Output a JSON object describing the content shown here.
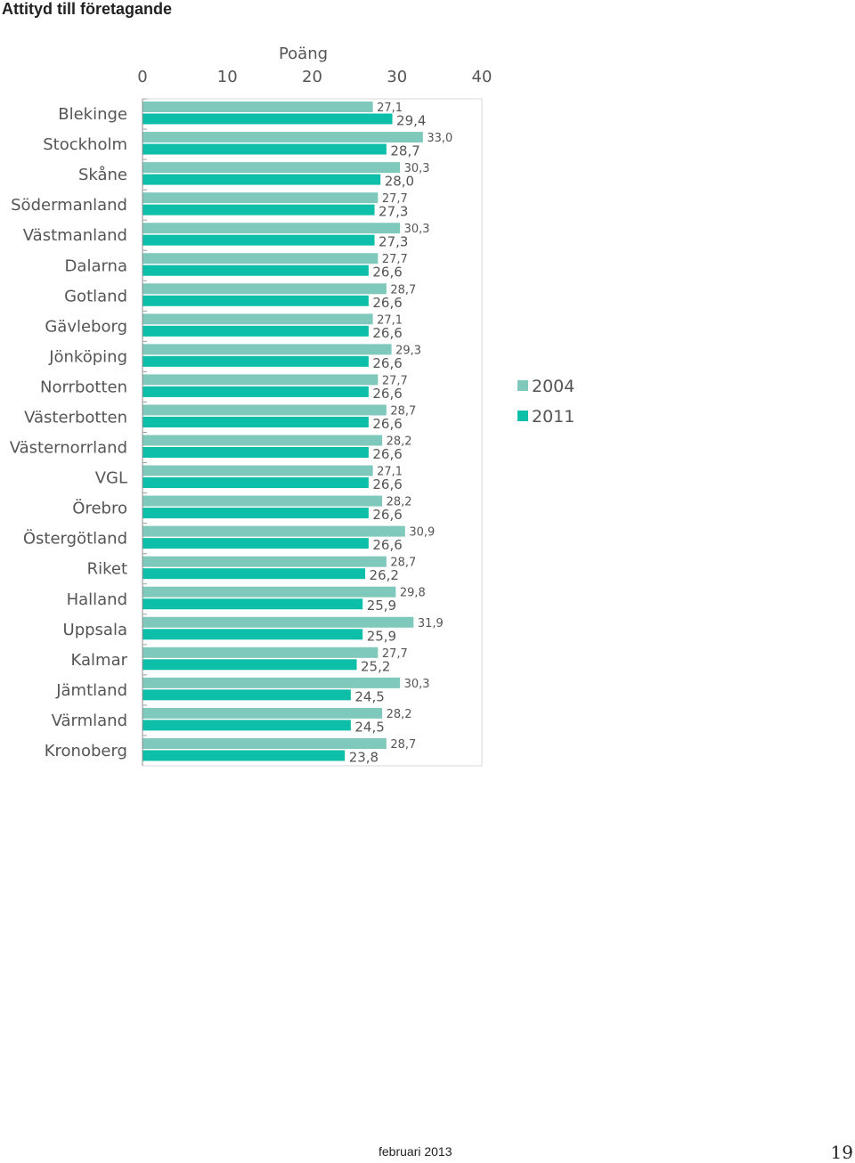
{
  "page": {
    "title": "Attityd till företagande",
    "footer": "februari 2013",
    "page_number": "19"
  },
  "chart_data": {
    "type": "bar",
    "orientation": "horizontal",
    "title": "",
    "xlabel": "Poäng",
    "ylabel": "",
    "xlim": [
      0,
      40
    ],
    "xticks": [
      "0",
      "10",
      "20",
      "30",
      "40"
    ],
    "grid": false,
    "legend_position": "right",
    "categories": [
      "Blekinge",
      "Stockholm",
      "Skåne",
      "Södermanland",
      "Västmanland",
      "Dalarna",
      "Gotland",
      "Gävleborg",
      "Jönköping",
      "Norrbotten",
      "Västerbotten",
      "Västernorrland",
      "VGL",
      "Örebro",
      "Östergötland",
      "Riket",
      "Halland",
      "Uppsala",
      "Kalmar",
      "Jämtland",
      "Värmland",
      "Kronoberg"
    ],
    "series": [
      {
        "name": "2004",
        "color": "#7fc8bc",
        "values": [
          27.1,
          33.0,
          30.3,
          27.7,
          30.3,
          27.7,
          28.7,
          27.1,
          29.3,
          27.7,
          28.7,
          28.2,
          27.1,
          28.2,
          30.9,
          28.7,
          29.8,
          31.9,
          27.7,
          30.3,
          28.2,
          28.7
        ],
        "labels": [
          "27,1",
          "33,0",
          "30,3",
          "27,7",
          "30,3",
          "27,7",
          "28,7",
          "27,1",
          "29,3",
          "27,7",
          "28,7",
          "28,2",
          "27,1",
          "28,2",
          "30,9",
          "28,7",
          "29,8",
          "31,9",
          "27,7",
          "30,3",
          "28,2",
          "28,7"
        ]
      },
      {
        "name": "2011",
        "color": "#0dbfa8",
        "values": [
          29.4,
          28.7,
          28.0,
          27.3,
          27.3,
          26.6,
          26.6,
          26.6,
          26.6,
          26.6,
          26.6,
          26.6,
          26.6,
          26.6,
          26.6,
          26.2,
          25.9,
          25.9,
          25.2,
          24.5,
          24.5,
          23.8
        ],
        "labels": [
          "29,4",
          "28,7",
          "28,0",
          "27,3",
          "27,3",
          "26,6",
          "26,6",
          "26,6",
          "26,6",
          "26,6",
          "26,6",
          "26,6",
          "26,6",
          "26,6",
          "26,6",
          "26,2",
          "25,9",
          "25,9",
          "25,2",
          "24,5",
          "24,5",
          "23,8"
        ]
      }
    ]
  }
}
